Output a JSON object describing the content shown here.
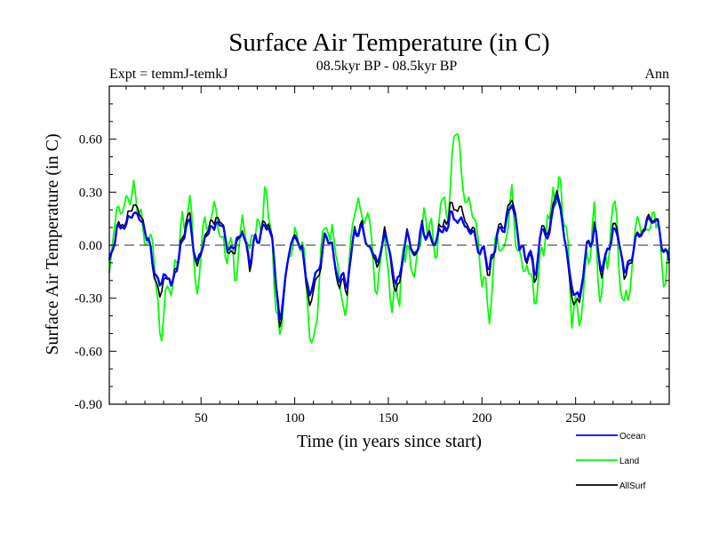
{
  "chart_data": {
    "type": "line",
    "title": "Surface Air Temperature (in C)",
    "subtitle": "08.5kyr BP - 08.5kyr BP",
    "left_note": "Expt = temmJ-temkJ",
    "right_note": "Ann",
    "xlabel": "Time (in years since start)",
    "ylabel": "Surface Air Temperature (in C)",
    "xlim": [
      1,
      300
    ],
    "ylim": [
      -0.9,
      0.9
    ],
    "x_ticks": [
      50,
      100,
      150,
      200,
      250
    ],
    "x_tick_labels": [
      "50",
      "100",
      "150",
      "200",
      "250"
    ],
    "y_ticks": [
      -0.9,
      -0.6,
      -0.3,
      0.0,
      0.3,
      0.6
    ],
    "y_tick_labels": [
      "-0.90",
      "-0.60",
      "-0.30",
      "0.00",
      "0.30",
      "0.60"
    ],
    "zero_line": true,
    "legend_position": "bottom-right",
    "control_years": [
      1,
      5,
      10,
      14,
      20,
      25,
      28,
      32,
      36,
      40,
      44,
      48,
      52,
      56,
      60,
      64,
      68,
      72,
      76,
      80,
      84,
      88,
      92,
      96,
      100,
      104,
      108,
      112,
      116,
      120,
      124,
      128,
      132,
      136,
      140,
      144,
      148,
      152,
      156,
      160,
      164,
      168,
      172,
      176,
      180,
      184,
      188,
      192,
      196,
      200,
      204,
      208,
      212,
      216,
      220,
      224,
      228,
      232,
      236,
      240,
      244,
      248,
      252,
      256,
      260,
      264,
      268,
      272,
      276,
      280,
      284,
      288,
      292,
      296,
      300
    ],
    "series": [
      {
        "name": "Ocean",
        "color": "#0000ff",
        "control_values": [
          -0.03,
          0.08,
          0.15,
          0.2,
          0.1,
          -0.1,
          -0.18,
          -0.25,
          -0.15,
          0.05,
          0.08,
          -0.1,
          0.05,
          0.15,
          0.12,
          0.05,
          0.0,
          0.1,
          -0.05,
          0.05,
          0.12,
          0.0,
          -0.4,
          -0.15,
          0.05,
          0.0,
          -0.3,
          -0.18,
          0.02,
          0.05,
          -0.15,
          -0.25,
          0.05,
          0.12,
          0.0,
          -0.1,
          0.05,
          -0.15,
          -0.2,
          0.1,
          -0.12,
          0.08,
          0.05,
          0.02,
          0.12,
          0.18,
          0.2,
          0.15,
          0.05,
          -0.05,
          -0.15,
          0.12,
          0.05,
          0.22,
          0.0,
          -0.05,
          -0.15,
          0.0,
          0.1,
          0.3,
          0.05,
          -0.25,
          -0.3,
          -0.05,
          0.1,
          -0.15,
          0.0,
          0.05,
          -0.2,
          -0.05,
          0.05,
          0.1,
          0.15,
          -0.05,
          -0.08
        ],
        "noise_seed": 11,
        "noise_amp": 0.1
      },
      {
        "name": "Land",
        "color": "#00ff00",
        "control_values": [
          -0.05,
          0.12,
          0.25,
          0.38,
          0.15,
          -0.2,
          -0.42,
          -0.3,
          -0.1,
          0.12,
          0.2,
          -0.2,
          0.1,
          0.3,
          0.2,
          0.0,
          -0.1,
          0.15,
          -0.15,
          0.1,
          0.2,
          0.05,
          -0.55,
          -0.2,
          0.1,
          0.05,
          -0.5,
          -0.3,
          0.0,
          0.1,
          -0.25,
          -0.38,
          0.1,
          0.2,
          0.0,
          -0.2,
          0.15,
          -0.3,
          -0.35,
          0.15,
          -0.2,
          0.12,
          0.1,
          0.05,
          0.25,
          0.35,
          0.5,
          0.22,
          0.12,
          -0.1,
          -0.3,
          0.2,
          0.12,
          0.3,
          0.0,
          -0.1,
          -0.3,
          0.05,
          0.2,
          0.35,
          0.1,
          -0.45,
          -0.4,
          -0.05,
          0.15,
          -0.3,
          0.05,
          0.15,
          -0.35,
          -0.1,
          0.1,
          0.15,
          0.2,
          -0.1,
          -0.12
        ],
        "noise_seed": 23,
        "noise_amp": 0.24
      },
      {
        "name": "AllSurf",
        "color": "#000000",
        "control_values": [
          -0.03,
          0.09,
          0.17,
          0.25,
          0.11,
          -0.12,
          -0.24,
          -0.26,
          -0.13,
          0.07,
          0.11,
          -0.13,
          0.06,
          0.19,
          0.14,
          0.04,
          -0.03,
          0.11,
          -0.08,
          0.06,
          0.14,
          0.01,
          -0.44,
          -0.16,
          0.06,
          0.01,
          -0.36,
          -0.22,
          0.01,
          0.06,
          -0.18,
          -0.29,
          0.06,
          0.14,
          0.0,
          -0.13,
          0.08,
          -0.19,
          -0.24,
          0.11,
          -0.14,
          0.09,
          0.06,
          0.03,
          0.16,
          0.23,
          0.28,
          0.17,
          0.07,
          -0.06,
          -0.19,
          0.14,
          0.07,
          0.25,
          0.0,
          -0.06,
          -0.19,
          0.01,
          0.13,
          0.32,
          0.06,
          -0.31,
          -0.33,
          -0.05,
          0.12,
          -0.19,
          0.01,
          0.08,
          -0.24,
          -0.06,
          0.06,
          0.11,
          0.16,
          -0.06,
          -0.09
        ],
        "noise_seed": 11,
        "noise_amp": 0.11
      }
    ]
  }
}
